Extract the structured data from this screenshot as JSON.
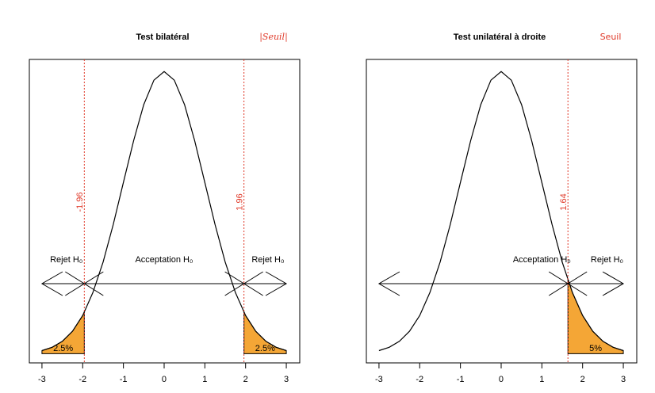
{
  "chart_data": [
    {
      "type": "line",
      "title": "Test bilatéral",
      "annotation": "|Seuil|",
      "x": [
        -3,
        -2.75,
        -2.5,
        -2.25,
        -2,
        -1.75,
        -1.5,
        -1.25,
        -1,
        -0.75,
        -0.5,
        -0.25,
        0,
        0.25,
        0.5,
        0.75,
        1,
        1.25,
        1.5,
        1.75,
        2,
        2.25,
        2.5,
        2.75,
        3
      ],
      "values": [
        0.0044,
        0.0091,
        0.0175,
        0.0317,
        0.054,
        0.0863,
        0.1295,
        0.1826,
        0.242,
        0.3011,
        0.3521,
        0.3867,
        0.3989,
        0.3867,
        0.3521,
        0.3011,
        0.242,
        0.1826,
        0.1295,
        0.0863,
        0.054,
        0.0317,
        0.0175,
        0.0091,
        0.0044
      ],
      "color": "#000000",
      "xlim": [
        -3.31,
        3.33
      ],
      "ylim": [
        -0.013,
        0.416
      ],
      "xticks": [
        -3,
        -2,
        -1,
        0,
        1,
        2,
        3
      ],
      "thresholds": [
        -1.96,
        1.96
      ],
      "threshold_color": "#e03a2a",
      "regions": [
        {
          "from": -3,
          "to": -1.96,
          "value": 2.5,
          "value_label": "2.5%"
        },
        {
          "from": 1.96,
          "to": 3,
          "value": 2.5,
          "value_label": "2.5%"
        }
      ],
      "fill_color": "#f4a636",
      "zones": [
        "Rejet H₀",
        "Acceptation H₀",
        "Rejet H₀"
      ]
    },
    {
      "type": "line",
      "title": "Test unilatéral à droite",
      "annotation": "Seuil",
      "x": [
        -3,
        -2.75,
        -2.5,
        -2.25,
        -2,
        -1.75,
        -1.5,
        -1.25,
        -1,
        -0.75,
        -0.5,
        -0.25,
        0,
        0.25,
        0.5,
        0.75,
        1,
        1.25,
        1.5,
        1.75,
        2,
        2.25,
        2.5,
        2.75,
        3
      ],
      "values": [
        0.0044,
        0.0091,
        0.0175,
        0.0317,
        0.054,
        0.0863,
        0.1295,
        0.1826,
        0.242,
        0.3011,
        0.3521,
        0.3867,
        0.3989,
        0.3867,
        0.3521,
        0.3011,
        0.242,
        0.1826,
        0.1295,
        0.0863,
        0.054,
        0.0317,
        0.0175,
        0.0091,
        0.0044
      ],
      "color": "#000000",
      "xlim": [
        -3.31,
        3.33
      ],
      "ylim": [
        -0.013,
        0.416
      ],
      "xticks": [
        -3,
        -2,
        -1,
        0,
        1,
        2,
        3
      ],
      "thresholds": [
        1.64
      ],
      "threshold_color": "#e03a2a",
      "regions": [
        {
          "from": 1.64,
          "to": 3,
          "value": 5,
          "value_label": "5%"
        }
      ],
      "fill_color": "#f4a636",
      "zones": [
        "Acceptation H₀",
        "Rejet H₀"
      ]
    }
  ]
}
